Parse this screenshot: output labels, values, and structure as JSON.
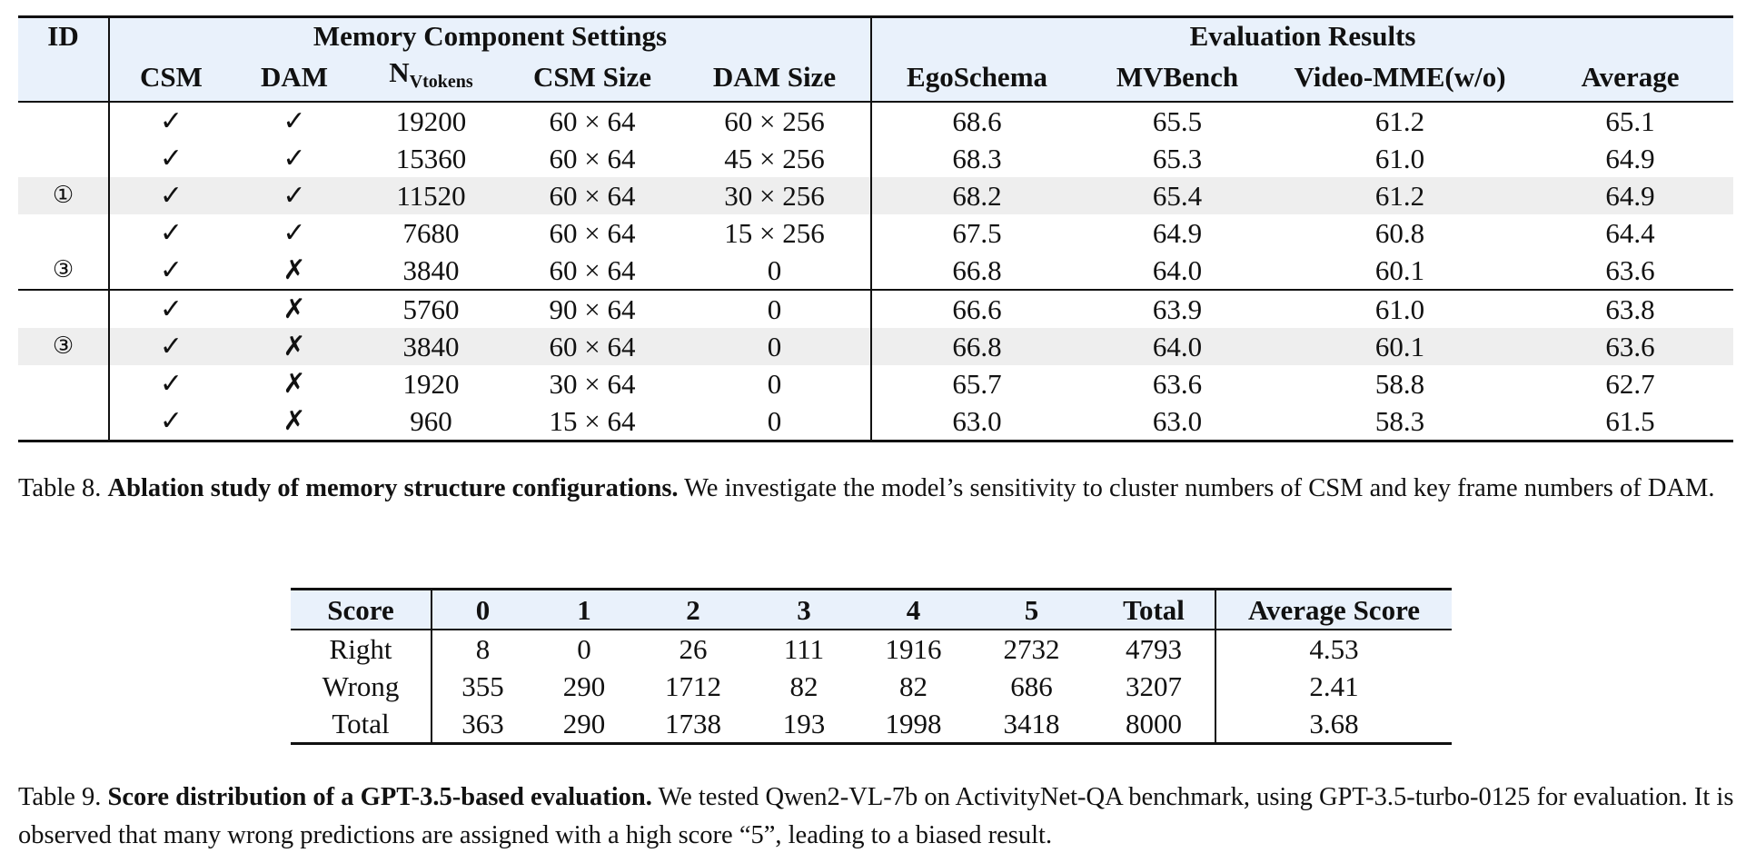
{
  "table8": {
    "header": {
      "id": "ID",
      "group_memory": "Memory Component Settings",
      "group_eval": "Evaluation Results",
      "cols": {
        "csm": "CSM",
        "dam": "DAM",
        "nv_main": "N",
        "nv_sub": "Vtokens",
        "csm_size": "CSM Size",
        "dam_size": "DAM Size",
        "egoschema": "EgoSchema",
        "mvbench": "MVBench",
        "videomme": "Video-MME(w/o)",
        "average": "Average"
      }
    },
    "rows": [
      {
        "id": "",
        "csm": "✓",
        "dam": "✓",
        "nv": "19200",
        "csm_size": "60 × 64",
        "dam_size": "60 × 256",
        "ego": "68.6",
        "mvb": "65.5",
        "vmme": "61.2",
        "avg": "65.1"
      },
      {
        "id": "",
        "csm": "✓",
        "dam": "✓",
        "nv": "15360",
        "csm_size": "60 × 64",
        "dam_size": "45 × 256",
        "ego": "68.3",
        "mvb": "65.3",
        "vmme": "61.0",
        "avg": "64.9"
      },
      {
        "id": "①",
        "csm": "✓",
        "dam": "✓",
        "nv": "11520",
        "csm_size": "60 × 64",
        "dam_size": "30 × 256",
        "ego": "68.2",
        "mvb": "65.4",
        "vmme": "61.2",
        "avg": "64.9"
      },
      {
        "id": "",
        "csm": "✓",
        "dam": "✓",
        "nv": "7680",
        "csm_size": "60 × 64",
        "dam_size": "15 × 256",
        "ego": "67.5",
        "mvb": "64.9",
        "vmme": "60.8",
        "avg": "64.4"
      },
      {
        "id": "③",
        "csm": "✓",
        "dam": "✗",
        "nv": "3840",
        "csm_size": "60 × 64",
        "dam_size": "0",
        "ego": "66.8",
        "mvb": "64.0",
        "vmme": "60.1",
        "avg": "63.6"
      },
      {
        "id": "",
        "csm": "✓",
        "dam": "✗",
        "nv": "5760",
        "csm_size": "90 × 64",
        "dam_size": "0",
        "ego": "66.6",
        "mvb": "63.9",
        "vmme": "61.0",
        "avg": "63.8"
      },
      {
        "id": "③",
        "csm": "✓",
        "dam": "✗",
        "nv": "3840",
        "csm_size": "60 × 64",
        "dam_size": "0",
        "ego": "66.8",
        "mvb": "64.0",
        "vmme": "60.1",
        "avg": "63.6"
      },
      {
        "id": "",
        "csm": "✓",
        "dam": "✗",
        "nv": "1920",
        "csm_size": "30 × 64",
        "dam_size": "0",
        "ego": "65.7",
        "mvb": "63.6",
        "vmme": "58.8",
        "avg": "62.7"
      },
      {
        "id": "",
        "csm": "✓",
        "dam": "✗",
        "nv": "960",
        "csm_size": "15 × 64",
        "dam_size": "0",
        "ego": "63.0",
        "mvb": "63.0",
        "vmme": "58.3",
        "avg": "61.5"
      }
    ],
    "caption": {
      "label": "Table 8.",
      "bold": "Ablation study of memory structure configurations.",
      "text": "We investigate the model’s sensitivity to cluster numbers of CSM and key frame numbers of DAM."
    }
  },
  "table9": {
    "header": [
      "Score",
      "0",
      "1",
      "2",
      "3",
      "4",
      "5",
      "Total",
      "Average Score"
    ],
    "rows": [
      [
        "Right",
        "8",
        "0",
        "26",
        "111",
        "1916",
        "2732",
        "4793",
        "4.53"
      ],
      [
        "Wrong",
        "355",
        "290",
        "1712",
        "82",
        "82",
        "686",
        "3207",
        "2.41"
      ],
      [
        "Total",
        "363",
        "290",
        "1738",
        "193",
        "1998",
        "3418",
        "8000",
        "3.68"
      ]
    ],
    "caption": {
      "label": "Table 9.",
      "bold": "Score distribution of a GPT-3.5-based evaluation.",
      "text": "We tested Qwen2-VL-7b on ActivityNet-QA benchmark, using GPT-3.5-turbo-0125 for evaluation. It is observed that many wrong predictions are assigned with a high score “5”, leading to a biased result."
    }
  }
}
